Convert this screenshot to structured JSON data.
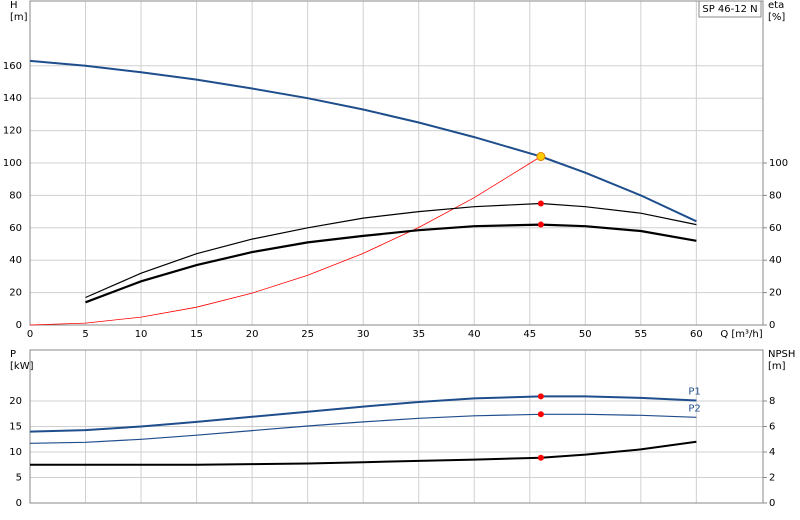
{
  "chart_data": [
    {
      "type": "line",
      "annotation": "SP 46-12 N",
      "xlabel": "Q [m³/h]",
      "ylabel": [
        "H",
        "[m]"
      ],
      "y2label": [
        "eta",
        "[%]"
      ],
      "xlim": [
        0,
        66
      ],
      "xticks": [
        0,
        5,
        10,
        15,
        20,
        25,
        30,
        35,
        40,
        45,
        50,
        55,
        60
      ],
      "ylim": [
        0,
        200
      ],
      "yticks": [
        0,
        20,
        40,
        60,
        80,
        100,
        120,
        140,
        160
      ],
      "y2lim": [
        0,
        200
      ],
      "y2ticks": [
        0,
        20,
        40,
        60,
        80,
        100
      ],
      "grid": true,
      "series": [
        {
          "color": "#1f4e8c",
          "width": 2,
          "x": [
            0,
            5,
            10,
            15,
            20,
            25,
            30,
            35,
            40,
            45,
            46,
            50,
            55,
            60
          ],
          "values": [
            163,
            160,
            156,
            151.5,
            146,
            140,
            133,
            125,
            116,
            106,
            104,
            94,
            80,
            64
          ]
        },
        {
          "color": "#ff0000",
          "width": 0.8,
          "x": [
            0,
            5,
            10,
            15,
            20,
            25,
            30,
            35,
            40,
            46
          ],
          "values": [
            0,
            1.2,
            4.9,
            11,
            19.7,
            30.7,
            44.2,
            60.2,
            78.6,
            104
          ]
        },
        {
          "color": "#000000",
          "width": 1.2,
          "axis": "y2",
          "x": [
            5,
            10,
            15,
            20,
            25,
            30,
            35,
            40,
            46,
            50,
            55,
            60
          ],
          "values": [
            17,
            32,
            44,
            53,
            60,
            66,
            70,
            73,
            75,
            73,
            69,
            62
          ]
        },
        {
          "color": "#000000",
          "width": 2.2,
          "axis": "y2",
          "x": [
            5,
            10,
            15,
            20,
            25,
            30,
            35,
            40,
            46,
            50,
            55,
            60
          ],
          "values": [
            14,
            27,
            37,
            45,
            51,
            55,
            58.5,
            61,
            62,
            61,
            58,
            52
          ]
        },
        {
          "marker": true,
          "color": "#ffcc00",
          "x": [
            46
          ],
          "values": [
            104
          ]
        },
        {
          "marker": true,
          "color": "#ff0000",
          "axis": "y2",
          "x": [
            46,
            46
          ],
          "values": [
            75,
            62
          ]
        }
      ]
    },
    {
      "type": "line",
      "ylabel": [
        "P",
        "[kW]"
      ],
      "y2label": [
        "NPSH",
        "[m]"
      ],
      "xlim": [
        0,
        66
      ],
      "xticks": [
        0,
        5,
        10,
        15,
        20,
        25,
        30,
        35,
        40,
        45,
        50,
        55,
        60
      ],
      "ylim": [
        0,
        30
      ],
      "yticks": [
        0,
        5,
        10,
        15,
        20
      ],
      "y2lim": [
        0,
        12
      ],
      "y2ticks": [
        0,
        2,
        4,
        6,
        8
      ],
      "grid": true,
      "series": [
        {
          "name": "P1",
          "color": "#1f4e8c",
          "width": 2,
          "x": [
            0,
            5,
            10,
            15,
            20,
            25,
            30,
            35,
            40,
            46,
            50,
            55,
            60
          ],
          "values": [
            14,
            14.3,
            15,
            15.9,
            16.9,
            17.9,
            18.9,
            19.8,
            20.5,
            20.9,
            20.9,
            20.6,
            20.1
          ]
        },
        {
          "name": "P2",
          "color": "#1f4e8c",
          "width": 1.2,
          "x": [
            0,
            5,
            10,
            15,
            20,
            25,
            30,
            35,
            40,
            46,
            50,
            55,
            60
          ],
          "values": [
            11.7,
            11.9,
            12.5,
            13.3,
            14.2,
            15.1,
            15.9,
            16.6,
            17.1,
            17.4,
            17.4,
            17.2,
            16.8
          ]
        },
        {
          "color": "#000000",
          "width": 2,
          "axis": "y2",
          "x": [
            0,
            5,
            10,
            15,
            20,
            25,
            30,
            35,
            40,
            46,
            50,
            55,
            60
          ],
          "values": [
            3.0,
            3.0,
            3.0,
            3.0,
            3.05,
            3.1,
            3.2,
            3.3,
            3.4,
            3.55,
            3.8,
            4.2,
            4.8
          ]
        },
        {
          "marker": true,
          "color": "#ff0000",
          "x": [
            46,
            46
          ],
          "values": [
            20.9,
            17.4
          ]
        },
        {
          "marker": true,
          "color": "#ff0000",
          "axis": "y2",
          "x": [
            46
          ],
          "values": [
            3.55
          ]
        }
      ]
    }
  ]
}
